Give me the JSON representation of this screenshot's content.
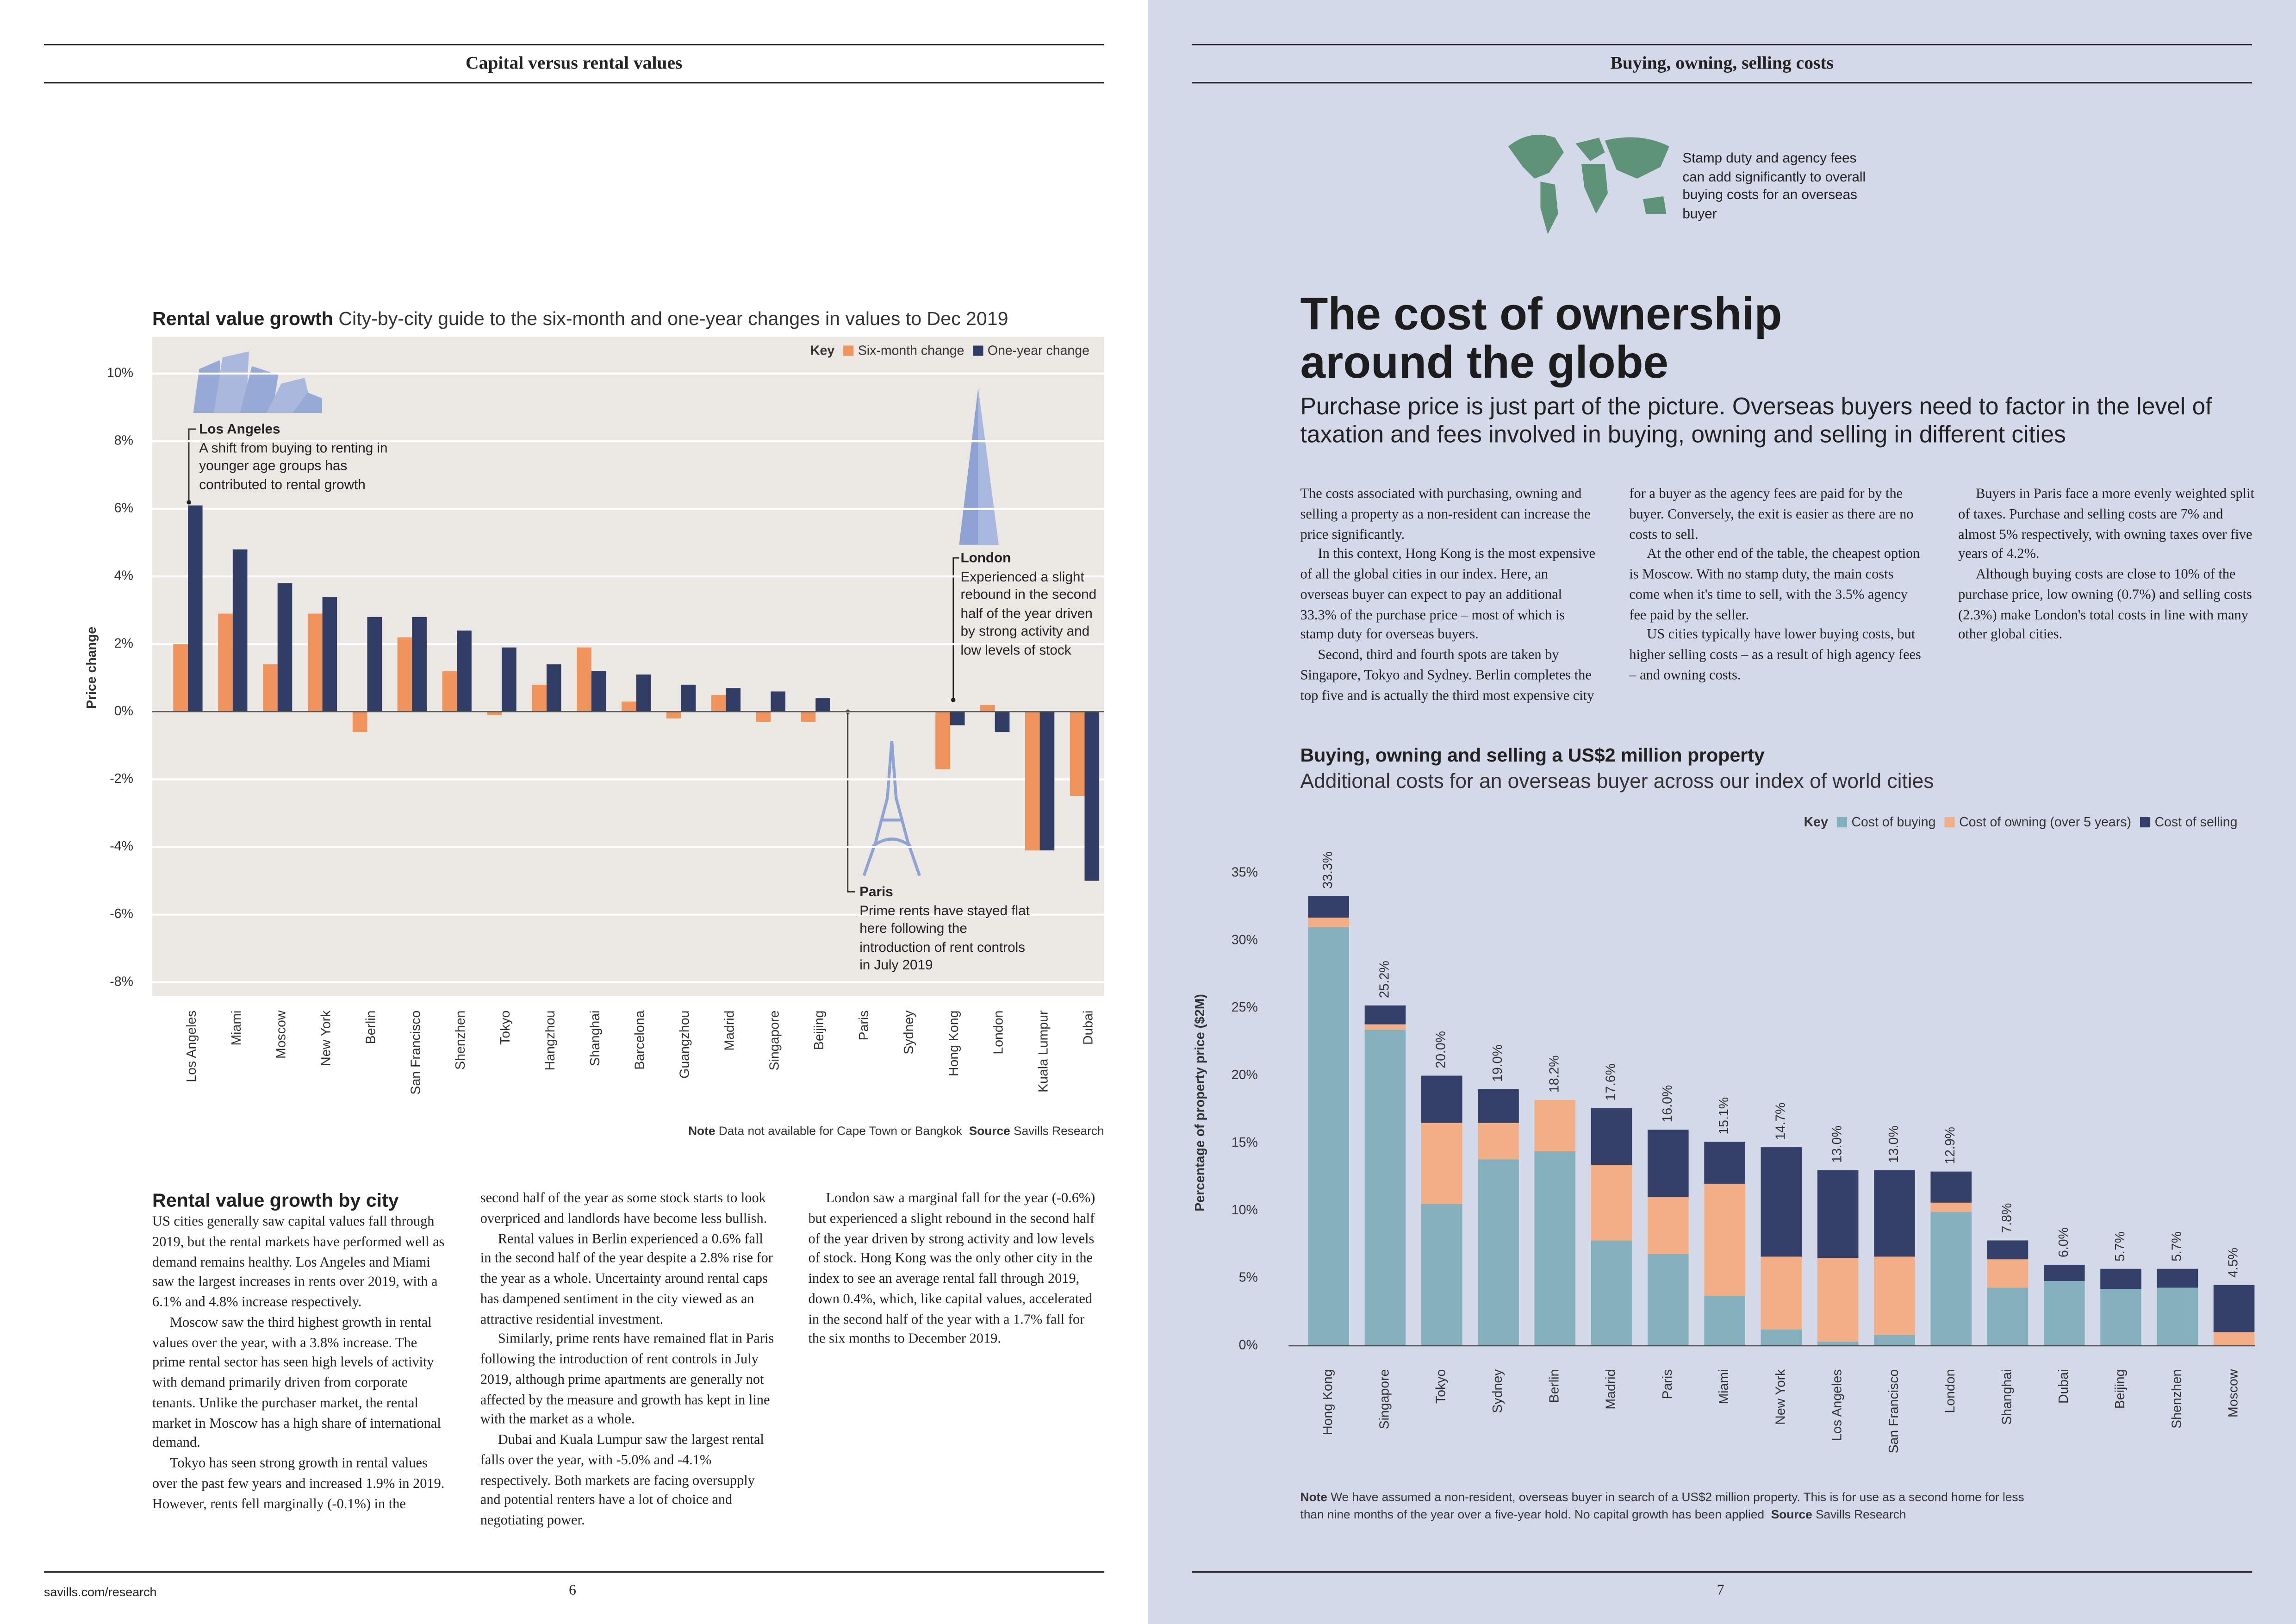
{
  "left_page": {
    "header": "Capital versus rental values",
    "footer_url": "savills.com/research",
    "page_number": "6",
    "article": {
      "heading": "Rental value growth by city",
      "paragraphs": [
        "US cities generally saw capital values fall through 2019, but the rental markets have performed well as demand remains healthy. Los Angeles and Miami saw the largest increases in rents over 2019, with a 6.1% and 4.8% increase respectively.",
        "Moscow saw the third highest growth in rental values over the year, with a 3.8% increase. The prime rental sector has seen high levels of activity with demand primarily driven from corporate tenants. Unlike the purchaser market, the rental market in Moscow has a high share of international demand.",
        "Tokyo has seen strong growth in rental values over the past few years and increased 1.9% in 2019. However, rents fell marginally (-0.1%) in the second half of the year as some stock starts to look overpriced and landlords have become less bullish.",
        "Rental values in Berlin experienced a 0.6% fall in the second half of the year despite a 2.8% rise for the year as a whole. Uncertainty around rental caps has dampened sentiment in the city viewed as an attractive residential investment.",
        "Similarly, prime rents have remained flat in Paris following the introduction of rent controls in July 2019, although prime apartments are generally not affected by the measure and growth has kept in line with the market as a whole.",
        "Dubai and Kuala Lumpur saw the largest rental falls over the year, with -5.0% and -4.1% respectively. Both markets are facing oversupply and potential renters have a lot of choice and negotiating power.",
        "London saw a marginal fall for the year (-0.6%) but experienced a slight rebound in the second half of the year driven by strong activity and low levels of stock. Hong Kong was the only other city in the index to see an average rental fall through 2019, down 0.4%, which, like capital values, accelerated in the second half of the year with a 1.7% fall for the six months to December 2019."
      ]
    }
  },
  "right_page": {
    "header": "Buying, owning, selling costs",
    "icon_caption": "Stamp duty and agency fees can add significantly to overall buying costs for an overseas buyer",
    "title": "The cost of ownership around the globe",
    "standfirst": "Purchase price is just part of the picture. Overseas buyers need to factor in the level of taxation and fees involved in buying, owning and selling in different cities",
    "paragraphs": [
      "The costs associated with purchasing, owning and selling a property as a non-resident can increase the price significantly.",
      "In this context, Hong Kong is the most expensive of all the global cities in our index. Here, an overseas buyer can expect to pay an additional 33.3% of the purchase price – most of which is stamp duty for overseas buyers.",
      "Second, third and fourth spots are taken by Singapore, Tokyo and Sydney. Berlin completes the top five and is actually the third most expensive city for a buyer as the agency fees are paid for by the buyer. Conversely, the exit is easier as there are no costs to sell.",
      "At the other end of the table, the cheapest option is Moscow. With no stamp duty, the main costs come when it's time to sell, with the 3.5% agency fee paid by the seller.",
      "US cities typically have lower buying costs, but higher selling costs – as a result of high agency fees – and owning costs.",
      "Buyers in Paris face a more evenly weighted split of taxes. Purchase and selling costs are 7% and almost 5% respectively, with owning taxes over five years of 4.2%.",
      "Although buying costs are close to 10% of the purchase price, low owning (0.7%) and selling costs (2.3%) make London's total costs in line with many other global cities."
    ],
    "page_number": "7"
  },
  "chart_data": [
    {
      "type": "bar",
      "title": "Rental value growth",
      "subtitle": "City-by-city guide to the six-month and one-year changes in values to Dec 2019",
      "legend_title": "Key",
      "legend": "top-right",
      "y_label": "Price change",
      "categories": [
        "Los Angeles",
        "Miami",
        "Moscow",
        "New York",
        "Berlin",
        "San Francisco",
        "Shenzhen",
        "Tokyo",
        "Hangzhou",
        "Shanghai",
        "Barcelona",
        "Guangzhou",
        "Madrid",
        "Singapore",
        "Beijing",
        "Paris",
        "Sydney",
        "Hong Kong",
        "London",
        "Kuala Lumpur",
        "Dubai"
      ],
      "series": [
        {
          "name": "Six-month change",
          "color": "#f0935c",
          "values": [
            2.0,
            2.9,
            1.4,
            2.9,
            -0.6,
            2.2,
            1.2,
            -0.1,
            0.8,
            1.9,
            0.3,
            -0.2,
            0.5,
            -0.3,
            -0.3,
            0,
            0,
            -1.7,
            0.2,
            -4.1,
            -2.5
          ]
        },
        {
          "name": "One-year change",
          "color": "#323d66",
          "values": [
            6.1,
            4.8,
            3.8,
            3.4,
            2.8,
            2.8,
            2.4,
            1.9,
            1.4,
            1.2,
            1.1,
            0.8,
            0.7,
            0.6,
            0.4,
            0,
            0,
            -0.4,
            -0.6,
            -4.1,
            -5.0
          ]
        }
      ],
      "ylim": [
        -8.4,
        11
      ],
      "yticks": [
        {
          "value": -8,
          "label": "-8%"
        },
        {
          "value": -6,
          "label": "-6%"
        },
        {
          "value": -4,
          "label": "-4%"
        },
        {
          "value": -2,
          "label": "-2%"
        },
        {
          "value": 0,
          "label": "0%"
        },
        {
          "value": 2,
          "label": "2%"
        },
        {
          "value": 4,
          "label": "4%"
        },
        {
          "value": 6,
          "label": "6%"
        },
        {
          "value": 8,
          "label": "8%"
        },
        {
          "value": 10,
          "label": "10%"
        }
      ],
      "grid": true,
      "annotations": [
        {
          "title": "Los Angeles",
          "text": "A shift from buying to renting in younger age groups has contributed to rental growth"
        },
        {
          "title": "London",
          "text": "Experienced a slight rebound in the second half of the year driven by strong activity and low levels of stock"
        },
        {
          "title": "Paris",
          "text": "Prime rents have stayed flat here following the introduction of rent controls in July 2019"
        }
      ],
      "note_label": "Note",
      "note": "Data not available for Cape Town or Bangkok",
      "source_label": "Source",
      "source": "Savills Research"
    },
    {
      "type": "stacked_bar",
      "title": "Buying, owning and selling a US$2 million property",
      "subtitle": "Additional costs for an overseas buyer across our index of world cities",
      "legend_title": "Key",
      "legend": "top-right",
      "y_label": "Percentage of property price ($2M)",
      "categories": [
        "Hong Kong",
        "Singapore",
        "Tokyo",
        "Sydney",
        "Berlin",
        "Madrid",
        "Paris",
        "Miami",
        "New York",
        "Los Angeles",
        "San Francisco",
        "London",
        "Shanghai",
        "Dubai",
        "Beijing",
        "Shenzhen",
        "Moscow"
      ],
      "series": [
        {
          "name": "Cost of buying",
          "color": "#85b1bf",
          "values": [
            31.0,
            23.4,
            10.5,
            13.8,
            14.4,
            7.8,
            6.8,
            3.7,
            1.2,
            0.3,
            0.8,
            9.9,
            4.3,
            4.8,
            4.2,
            4.3,
            0
          ]
        },
        {
          "name": "Cost of owning (over 5 years)",
          "color": "#f4ae86",
          "values": [
            0.7,
            0.4,
            6.0,
            2.7,
            3.8,
            5.6,
            4.2,
            8.3,
            5.4,
            6.2,
            5.8,
            0.7,
            2.1,
            0,
            0,
            0,
            1.0
          ]
        },
        {
          "name": "Cost of selling",
          "color": "#343f6a",
          "values": [
            1.6,
            1.4,
            3.5,
            2.5,
            0,
            4.2,
            5.0,
            3.1,
            8.1,
            6.5,
            6.4,
            2.3,
            1.4,
            1.2,
            1.5,
            1.4,
            3.5
          ]
        }
      ],
      "totals": [
        33.3,
        25.2,
        20.0,
        19.0,
        18.2,
        17.6,
        16.0,
        15.1,
        14.7,
        13.0,
        13.0,
        12.9,
        7.8,
        6.0,
        5.7,
        5.7,
        4.5
      ],
      "total_labels": [
        "33.3%",
        "25.2%",
        "20.0%",
        "19.0%",
        "18.2%",
        "17.6%",
        "16.0%",
        "15.1%",
        "14.7%",
        "13.0%",
        "13.0%",
        "12.9%",
        "7.8%",
        "6.0%",
        "5.7%",
        "5.7%",
        "4.5%"
      ],
      "ylim": [
        0,
        36
      ],
      "yticks": [
        {
          "value": 0,
          "label": "0%"
        },
        {
          "value": 5,
          "label": "5%"
        },
        {
          "value": 10,
          "label": "10%"
        },
        {
          "value": 15,
          "label": "15%"
        },
        {
          "value": 20,
          "label": "20%"
        },
        {
          "value": 25,
          "label": "25%"
        },
        {
          "value": 30,
          "label": "30%"
        },
        {
          "value": 35,
          "label": "35%"
        }
      ],
      "grid": false,
      "note_label": "Note",
      "note": "We have assumed a non-resident, overseas buyer in search of a US$2 million property. This is for use as a second home for less than nine months of the year over a five-year hold. No capital growth has been applied",
      "source_label": "Source",
      "source": "Savills Research"
    }
  ]
}
